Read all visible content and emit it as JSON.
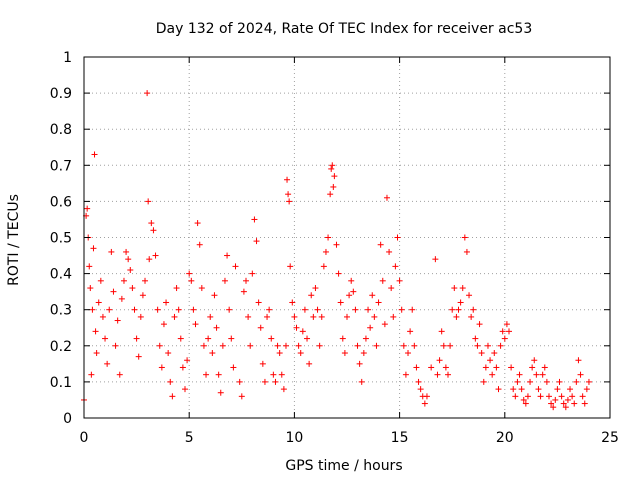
{
  "chart_data": {
    "type": "scatter",
    "title": "Day 132 of 2024, Rate Of TEC Index for receiver ac53",
    "xlabel": "GPS time / hours",
    "ylabel": "ROTI / TECUs",
    "xlim": [
      0,
      25
    ],
    "ylim": [
      0,
      1
    ],
    "x_ticks": [
      "0",
      "5",
      "10",
      "15",
      "20",
      "25"
    ],
    "y_ticks": [
      "0",
      "0.1",
      "0.2",
      "0.3",
      "0.4",
      "0.5",
      "0.6",
      "0.7",
      "0.8",
      "0.9",
      "1"
    ],
    "grid": true,
    "marker": "+",
    "color": "#ff0000",
    "points": [
      [
        0.0,
        0.05
      ],
      [
        0.1,
        0.56
      ],
      [
        0.15,
        0.58
      ],
      [
        0.2,
        0.5
      ],
      [
        0.25,
        0.42
      ],
      [
        0.3,
        0.36
      ],
      [
        0.35,
        0.12
      ],
      [
        0.4,
        0.3
      ],
      [
        0.45,
        0.47
      ],
      [
        0.5,
        0.73
      ],
      [
        0.55,
        0.24
      ],
      [
        0.6,
        0.18
      ],
      [
        0.7,
        0.32
      ],
      [
        0.8,
        0.38
      ],
      [
        0.9,
        0.28
      ],
      [
        1.0,
        0.22
      ],
      [
        1.1,
        0.15
      ],
      [
        1.2,
        0.3
      ],
      [
        1.3,
        0.46
      ],
      [
        1.4,
        0.35
      ],
      [
        1.5,
        0.2
      ],
      [
        1.6,
        0.27
      ],
      [
        1.7,
        0.12
      ],
      [
        1.8,
        0.33
      ],
      [
        1.9,
        0.38
      ],
      [
        2.0,
        0.46
      ],
      [
        2.1,
        0.44
      ],
      [
        2.2,
        0.41
      ],
      [
        2.3,
        0.36
      ],
      [
        2.4,
        0.3
      ],
      [
        2.5,
        0.22
      ],
      [
        2.6,
        0.17
      ],
      [
        2.7,
        0.28
      ],
      [
        2.8,
        0.34
      ],
      [
        2.9,
        0.38
      ],
      [
        3.0,
        0.9
      ],
      [
        3.05,
        0.6
      ],
      [
        3.1,
        0.44
      ],
      [
        3.2,
        0.54
      ],
      [
        3.3,
        0.52
      ],
      [
        3.4,
        0.45
      ],
      [
        3.5,
        0.3
      ],
      [
        3.6,
        0.2
      ],
      [
        3.7,
        0.14
      ],
      [
        3.8,
        0.26
      ],
      [
        3.9,
        0.32
      ],
      [
        4.0,
        0.18
      ],
      [
        4.1,
        0.1
      ],
      [
        4.2,
        0.06
      ],
      [
        4.3,
        0.28
      ],
      [
        4.4,
        0.36
      ],
      [
        4.5,
        0.3
      ],
      [
        4.6,
        0.22
      ],
      [
        4.7,
        0.14
      ],
      [
        4.8,
        0.08
      ],
      [
        4.9,
        0.16
      ],
      [
        5.0,
        0.4
      ],
      [
        5.1,
        0.38
      ],
      [
        5.2,
        0.3
      ],
      [
        5.3,
        0.26
      ],
      [
        5.4,
        0.54
      ],
      [
        5.5,
        0.48
      ],
      [
        5.6,
        0.36
      ],
      [
        5.7,
        0.2
      ],
      [
        5.8,
        0.12
      ],
      [
        5.9,
        0.22
      ],
      [
        6.0,
        0.28
      ],
      [
        6.1,
        0.18
      ],
      [
        6.2,
        0.34
      ],
      [
        6.3,
        0.25
      ],
      [
        6.4,
        0.12
      ],
      [
        6.5,
        0.07
      ],
      [
        6.6,
        0.2
      ],
      [
        6.7,
        0.38
      ],
      [
        6.8,
        0.45
      ],
      [
        6.9,
        0.3
      ],
      [
        7.0,
        0.22
      ],
      [
        7.1,
        0.14
      ],
      [
        7.2,
        0.42
      ],
      [
        7.4,
        0.1
      ],
      [
        7.5,
        0.06
      ],
      [
        7.6,
        0.35
      ],
      [
        7.7,
        0.38
      ],
      [
        7.8,
        0.28
      ],
      [
        7.9,
        0.2
      ],
      [
        8.0,
        0.4
      ],
      [
        8.1,
        0.55
      ],
      [
        8.2,
        0.49
      ],
      [
        8.3,
        0.32
      ],
      [
        8.4,
        0.25
      ],
      [
        8.5,
        0.15
      ],
      [
        8.6,
        0.1
      ],
      [
        8.7,
        0.28
      ],
      [
        8.8,
        0.3
      ],
      [
        8.9,
        0.22
      ],
      [
        9.0,
        0.12
      ],
      [
        9.1,
        0.1
      ],
      [
        9.2,
        0.2
      ],
      [
        9.3,
        0.18
      ],
      [
        9.4,
        0.12
      ],
      [
        9.5,
        0.08
      ],
      [
        9.6,
        0.2
      ],
      [
        9.65,
        0.66
      ],
      [
        9.7,
        0.62
      ],
      [
        9.75,
        0.6
      ],
      [
        9.8,
        0.42
      ],
      [
        9.9,
        0.32
      ],
      [
        10.0,
        0.28
      ],
      [
        10.1,
        0.25
      ],
      [
        10.2,
        0.2
      ],
      [
        10.3,
        0.18
      ],
      [
        10.4,
        0.24
      ],
      [
        10.5,
        0.3
      ],
      [
        10.6,
        0.22
      ],
      [
        10.7,
        0.15
      ],
      [
        10.8,
        0.34
      ],
      [
        10.9,
        0.28
      ],
      [
        11.0,
        0.36
      ],
      [
        11.1,
        0.3
      ],
      [
        11.2,
        0.2
      ],
      [
        11.3,
        0.28
      ],
      [
        11.4,
        0.42
      ],
      [
        11.5,
        0.46
      ],
      [
        11.6,
        0.5
      ],
      [
        11.7,
        0.62
      ],
      [
        11.75,
        0.69
      ],
      [
        11.8,
        0.7
      ],
      [
        11.85,
        0.64
      ],
      [
        11.9,
        0.67
      ],
      [
        12.0,
        0.48
      ],
      [
        12.1,
        0.4
      ],
      [
        12.2,
        0.32
      ],
      [
        12.3,
        0.22
      ],
      [
        12.4,
        0.18
      ],
      [
        12.5,
        0.28
      ],
      [
        12.6,
        0.34
      ],
      [
        12.7,
        0.38
      ],
      [
        12.8,
        0.35
      ],
      [
        12.9,
        0.3
      ],
      [
        13.0,
        0.2
      ],
      [
        13.1,
        0.15
      ],
      [
        13.2,
        0.1
      ],
      [
        13.3,
        0.18
      ],
      [
        13.4,
        0.22
      ],
      [
        13.5,
        0.3
      ],
      [
        13.6,
        0.25
      ],
      [
        13.7,
        0.34
      ],
      [
        13.8,
        0.28
      ],
      [
        13.9,
        0.2
      ],
      [
        14.0,
        0.32
      ],
      [
        14.1,
        0.48
      ],
      [
        14.2,
        0.38
      ],
      [
        14.3,
        0.26
      ],
      [
        14.4,
        0.61
      ],
      [
        14.5,
        0.46
      ],
      [
        14.6,
        0.36
      ],
      [
        14.7,
        0.28
      ],
      [
        14.8,
        0.42
      ],
      [
        14.9,
        0.5
      ],
      [
        15.0,
        0.38
      ],
      [
        15.1,
        0.3
      ],
      [
        15.2,
        0.2
      ],
      [
        15.3,
        0.12
      ],
      [
        15.4,
        0.18
      ],
      [
        15.5,
        0.24
      ],
      [
        15.6,
        0.3
      ],
      [
        15.7,
        0.2
      ],
      [
        15.8,
        0.14
      ],
      [
        15.9,
        0.1
      ],
      [
        16.0,
        0.08
      ],
      [
        16.1,
        0.06
      ],
      [
        16.2,
        0.04
      ],
      [
        16.3,
        0.06
      ],
      [
        16.5,
        0.14
      ],
      [
        16.7,
        0.44
      ],
      [
        16.8,
        0.12
      ],
      [
        16.9,
        0.16
      ],
      [
        17.0,
        0.24
      ],
      [
        17.1,
        0.2
      ],
      [
        17.2,
        0.14
      ],
      [
        17.3,
        0.12
      ],
      [
        17.4,
        0.2
      ],
      [
        17.5,
        0.3
      ],
      [
        17.6,
        0.36
      ],
      [
        17.7,
        0.28
      ],
      [
        17.8,
        0.3
      ],
      [
        17.9,
        0.32
      ],
      [
        18.0,
        0.36
      ],
      [
        18.1,
        0.5
      ],
      [
        18.2,
        0.46
      ],
      [
        18.3,
        0.34
      ],
      [
        18.4,
        0.28
      ],
      [
        18.5,
        0.3
      ],
      [
        18.6,
        0.22
      ],
      [
        18.7,
        0.2
      ],
      [
        18.8,
        0.26
      ],
      [
        18.9,
        0.18
      ],
      [
        19.0,
        0.1
      ],
      [
        19.1,
        0.14
      ],
      [
        19.2,
        0.2
      ],
      [
        19.3,
        0.16
      ],
      [
        19.4,
        0.12
      ],
      [
        19.5,
        0.18
      ],
      [
        19.6,
        0.14
      ],
      [
        19.7,
        0.08
      ],
      [
        19.8,
        0.2
      ],
      [
        19.9,
        0.24
      ],
      [
        20.0,
        0.22
      ],
      [
        20.1,
        0.26
      ],
      [
        20.2,
        0.24
      ],
      [
        20.3,
        0.14
      ],
      [
        20.4,
        0.08
      ],
      [
        20.5,
        0.06
      ],
      [
        20.6,
        0.1
      ],
      [
        20.7,
        0.12
      ],
      [
        20.8,
        0.08
      ],
      [
        20.9,
        0.05
      ],
      [
        21.0,
        0.04
      ],
      [
        21.1,
        0.06
      ],
      [
        21.2,
        0.1
      ],
      [
        21.3,
        0.14
      ],
      [
        21.4,
        0.16
      ],
      [
        21.5,
        0.12
      ],
      [
        21.6,
        0.08
      ],
      [
        21.7,
        0.06
      ],
      [
        21.8,
        0.12
      ],
      [
        21.9,
        0.14
      ],
      [
        22.0,
        0.1
      ],
      [
        22.1,
        0.06
      ],
      [
        22.2,
        0.04
      ],
      [
        22.3,
        0.03
      ],
      [
        22.4,
        0.05
      ],
      [
        22.5,
        0.08
      ],
      [
        22.6,
        0.1
      ],
      [
        22.7,
        0.06
      ],
      [
        22.8,
        0.04
      ],
      [
        22.9,
        0.03
      ],
      [
        23.0,
        0.05
      ],
      [
        23.1,
        0.08
      ],
      [
        23.2,
        0.06
      ],
      [
        23.3,
        0.04
      ],
      [
        23.4,
        0.1
      ],
      [
        23.5,
        0.16
      ],
      [
        23.6,
        0.12
      ],
      [
        23.7,
        0.06
      ],
      [
        23.8,
        0.04
      ],
      [
        23.9,
        0.08
      ],
      [
        24.0,
        0.1
      ]
    ]
  }
}
